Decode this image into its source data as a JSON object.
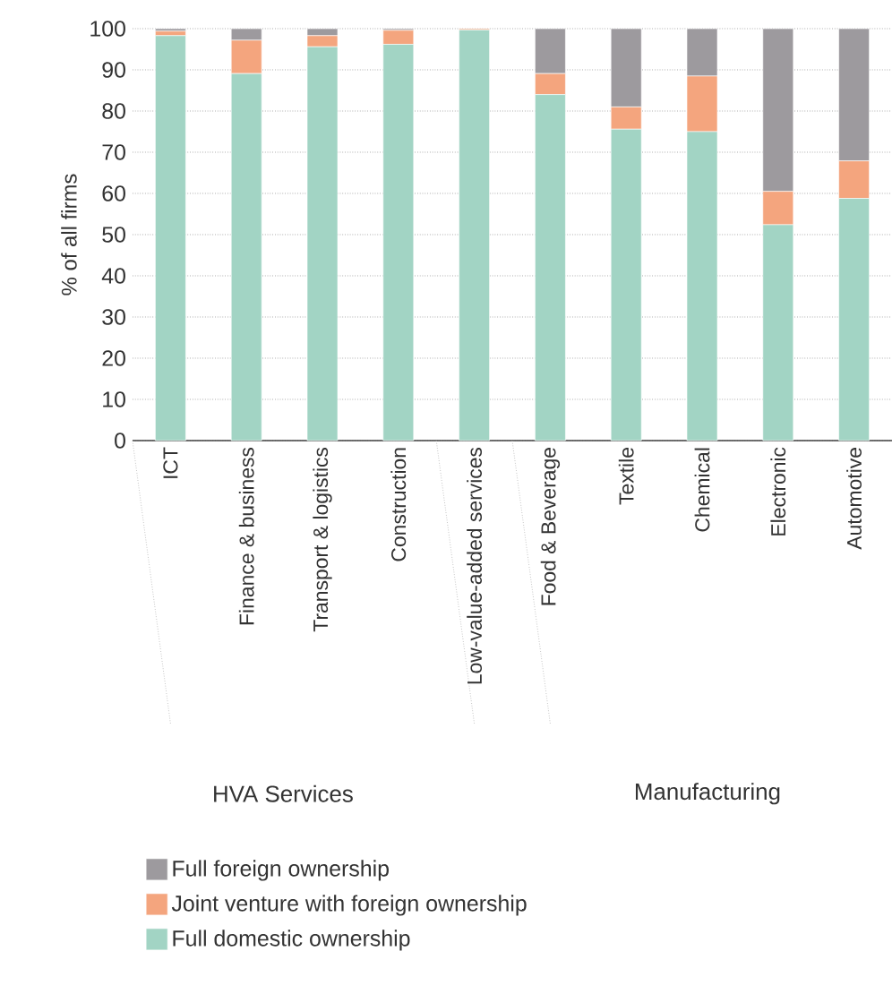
{
  "chart_data": {
    "type": "bar",
    "stacked": true,
    "ylabel": "% of all firms",
    "categories": [
      "ICT",
      "Finance & business",
      "Transport & logistics",
      "Construction",
      "Low-value-added services",
      "Food & Beverage",
      "Textile",
      "Chemical",
      "Electronic",
      "Automotive"
    ],
    "series": [
      {
        "name": "Full domestic ownership",
        "color": "#a2d4c4",
        "values": [
          98.3,
          89.1,
          95.6,
          96.2,
          99.7,
          84.0,
          75.6,
          75.0,
          52.4,
          58.8
        ]
      },
      {
        "name": "Joint venture with foreign ownership",
        "color": "#f4a57e",
        "values": [
          1.1,
          8.1,
          2.7,
          3.4,
          0.3,
          5.1,
          5.4,
          13.5,
          8.1,
          9.1
        ]
      },
      {
        "name": "Full foreign ownership",
        "color": "#9d9a9e",
        "values": [
          0.6,
          2.8,
          1.7,
          0.4,
          0.0,
          10.9,
          19.0,
          11.5,
          39.5,
          32.1
        ]
      }
    ],
    "ylim": [
      0,
      100
    ],
    "yticks": [
      0,
      10,
      20,
      30,
      40,
      50,
      60,
      70,
      80,
      90,
      100
    ],
    "grid": "y",
    "legend": "bottom",
    "annotations": [
      "HVA Services",
      "Manufacturing"
    ]
  }
}
